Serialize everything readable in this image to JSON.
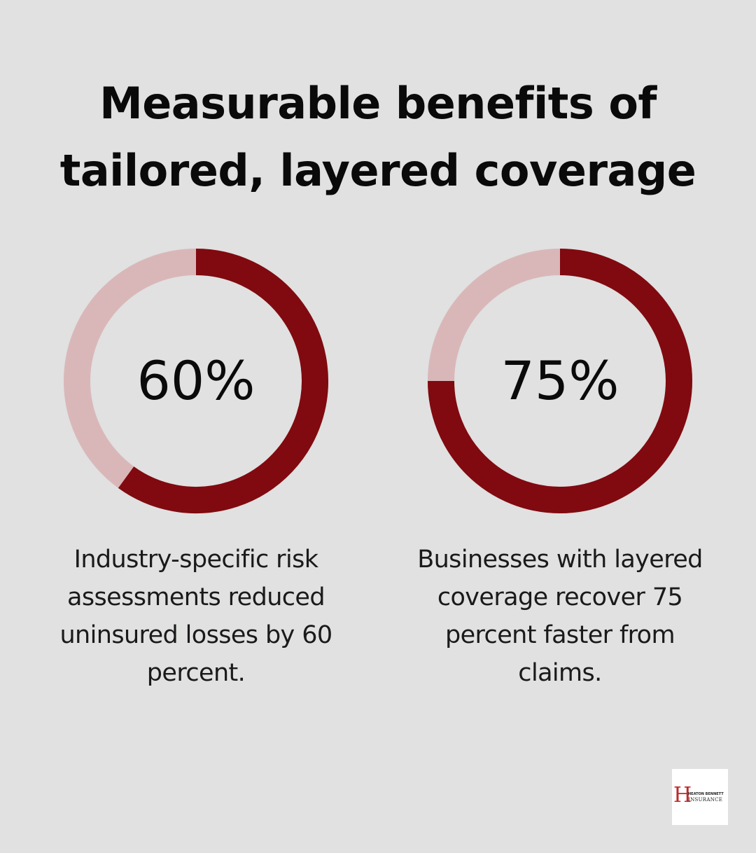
{
  "title": {
    "line1": "Measurable benefits of",
    "line2": "tailored, layered coverage"
  },
  "colors": {
    "background": "#e0e1e0",
    "filled": "#800a10",
    "remainder": "#d9b7b9"
  },
  "chart_data": [
    {
      "type": "pie",
      "variant": "donut",
      "value": 60,
      "max": 100,
      "label": "60%",
      "caption": "Industry-specific risk assessments reduced uninsured losses by 60 percent.",
      "caption_lines": [
        "Industry-specific risk",
        "assessments reduced",
        "uninsured losses by 60",
        "percent."
      ]
    },
    {
      "type": "pie",
      "variant": "donut",
      "value": 75,
      "max": 100,
      "label": "75%",
      "caption": "Businesses with layered coverage recover 75 percent faster from claims.",
      "caption_lines": [
        "Businesses with layered",
        "coverage recover 75",
        "percent faster from",
        "claims."
      ]
    }
  ],
  "logo": {
    "letter": "H",
    "line1": "HEATON BENNETT",
    "line2": "INSURANCE"
  }
}
